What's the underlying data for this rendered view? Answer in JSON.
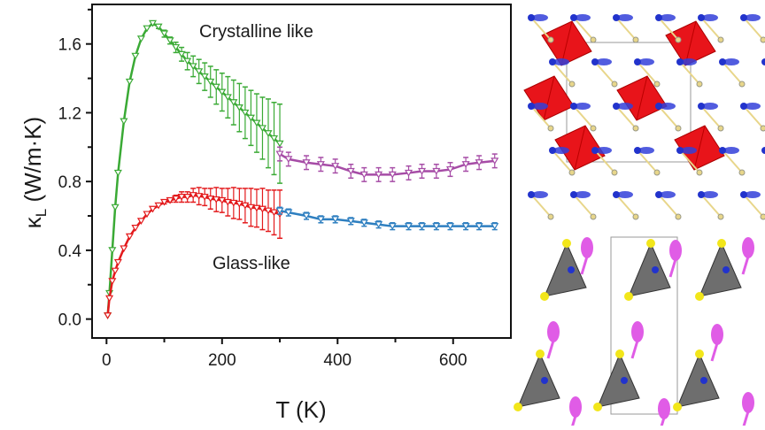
{
  "chart_data": {
    "type": "line",
    "xlabel": "T (K)",
    "ylabel_main": "κ",
    "ylabel_sub": "L",
    "ylabel_unit": " (W/m·K)",
    "xlim": [
      -25,
      700
    ],
    "ylim": [
      -0.11,
      1.83
    ],
    "xticks": [
      0,
      200,
      400,
      600
    ],
    "xtick_labels": [
      "0",
      "200",
      "400",
      "600"
    ],
    "yticks": [
      0.0,
      0.4,
      0.8,
      1.2,
      1.6
    ],
    "ytick_labels": [
      "0.0",
      "0.4",
      "0.8",
      "1.2",
      "1.6"
    ],
    "grid": false,
    "annotations": [
      {
        "text": "Crystalline like",
        "x": 300,
        "y": 1.68
      },
      {
        "text": "Glass-like",
        "x": 300,
        "y": 0.33
      }
    ],
    "series": [
      {
        "color": "#3aaa35",
        "x": [
          2,
          5,
          10,
          15,
          20,
          30,
          40,
          50,
          60,
          70,
          80,
          90,
          100,
          110,
          120,
          130,
          140,
          150,
          160,
          170,
          180,
          190,
          200,
          210,
          220,
          230,
          240,
          250,
          260,
          270,
          280,
          290,
          300
        ],
        "y": [
          0.02,
          0.15,
          0.4,
          0.65,
          0.85,
          1.15,
          1.38,
          1.53,
          1.63,
          1.69,
          1.72,
          1.7,
          1.66,
          1.62,
          1.58,
          1.54,
          1.5,
          1.47,
          1.44,
          1.41,
          1.38,
          1.35,
          1.32,
          1.29,
          1.26,
          1.23,
          1.2,
          1.17,
          1.14,
          1.11,
          1.08,
          1.05,
          1.02
        ],
        "err": [
          0,
          0,
          0,
          0,
          0,
          0,
          0,
          0,
          0,
          0,
          0.01,
          0.01,
          0.02,
          0.02,
          0.03,
          0.04,
          0.05,
          0.06,
          0.07,
          0.08,
          0.09,
          0.1,
          0.11,
          0.12,
          0.13,
          0.14,
          0.15,
          0.16,
          0.17,
          0.18,
          0.2,
          0.21,
          0.23
        ]
      },
      {
        "color": "#e31a1c",
        "x": [
          2,
          5,
          10,
          15,
          20,
          30,
          40,
          50,
          60,
          70,
          80,
          90,
          100,
          110,
          120,
          130,
          140,
          150,
          160,
          170,
          180,
          190,
          200,
          210,
          220,
          230,
          240,
          250,
          260,
          270,
          280,
          290,
          300
        ],
        "y": [
          0.02,
          0.12,
          0.22,
          0.28,
          0.33,
          0.41,
          0.48,
          0.53,
          0.57,
          0.61,
          0.64,
          0.66,
          0.68,
          0.69,
          0.7,
          0.71,
          0.71,
          0.72,
          0.715,
          0.71,
          0.7,
          0.695,
          0.69,
          0.68,
          0.675,
          0.67,
          0.66,
          0.65,
          0.645,
          0.64,
          0.63,
          0.62,
          0.61
        ],
        "err": [
          0,
          0,
          0,
          0,
          0,
          0,
          0,
          0,
          0,
          0,
          0,
          0,
          0.01,
          0.01,
          0.02,
          0.03,
          0.03,
          0.04,
          0.05,
          0.05,
          0.06,
          0.07,
          0.07,
          0.08,
          0.09,
          0.09,
          0.1,
          0.11,
          0.11,
          0.12,
          0.12,
          0.13,
          0.14
        ]
      },
      {
        "color": "#a64ca6",
        "x": [
          300,
          315,
          346,
          371,
          396,
          423,
          446,
          471,
          495,
          523,
          546,
          571,
          595,
          622,
          645,
          672
        ],
        "y": [
          0.96,
          0.93,
          0.91,
          0.9,
          0.89,
          0.86,
          0.84,
          0.84,
          0.84,
          0.85,
          0.86,
          0.86,
          0.87,
          0.9,
          0.91,
          0.92
        ],
        "err": [
          0.04,
          0.04,
          0.04,
          0.04,
          0.04,
          0.04,
          0.04,
          0.04,
          0.04,
          0.04,
          0.04,
          0.04,
          0.04,
          0.04,
          0.04,
          0.04
        ]
      },
      {
        "color": "#2e7fc0",
        "x": [
          300,
          315,
          346,
          371,
          396,
          423,
          446,
          471,
          495,
          523,
          546,
          571,
          595,
          622,
          645,
          672
        ],
        "y": [
          0.63,
          0.62,
          0.6,
          0.58,
          0.58,
          0.57,
          0.56,
          0.55,
          0.54,
          0.54,
          0.54,
          0.54,
          0.54,
          0.54,
          0.54,
          0.54
        ],
        "err": [
          0.02,
          0.02,
          0.02,
          0.02,
          0.02,
          0.02,
          0.02,
          0.02,
          0.02,
          0.02,
          0.02,
          0.02,
          0.02,
          0.02,
          0.02,
          0.02
        ]
      }
    ]
  },
  "structures": {
    "top_colors": {
      "polyhedra": "#e8141a",
      "lobes": "#3340d9",
      "atoms": "#e8d68a"
    },
    "bottom_colors": {
      "polyhedra": "#6e6e6e",
      "lobes": "#e05ce6",
      "atoms": "#f2e61a"
    }
  }
}
